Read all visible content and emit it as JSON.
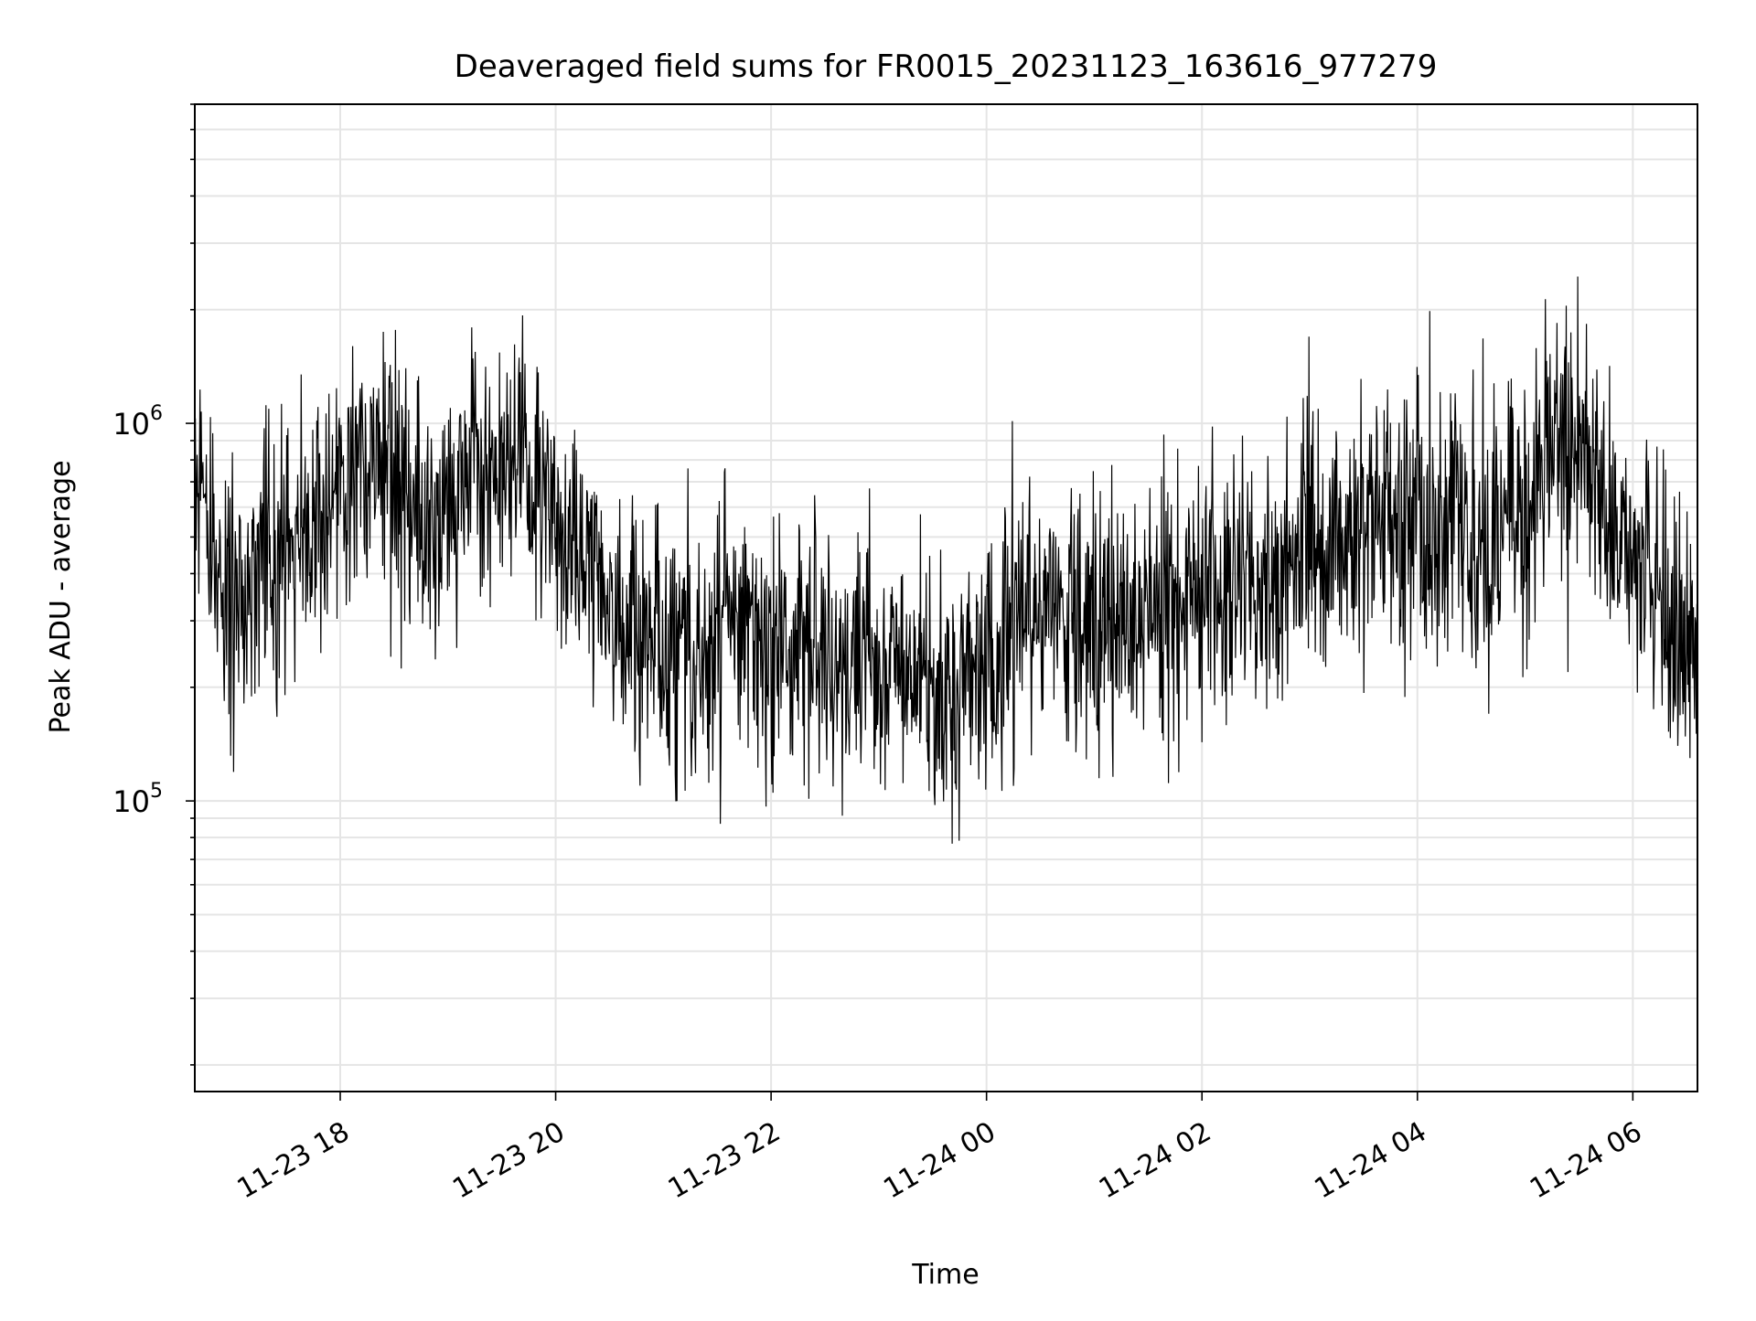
{
  "chart_data": {
    "type": "line",
    "title": "Deaveraged field sums for FR0015_20231123_163616_977279",
    "xlabel": "Time",
    "ylabel": "Peak ADU - average",
    "yscale": "log",
    "ylim": [
      17000,
      7000000
    ],
    "xlim": [
      "2023-11-23 16:39",
      "2023-11-24 06:36"
    ],
    "grid": true,
    "legend": "none",
    "line_color": "#000000",
    "grid_color": "#e5e5e5",
    "x_ticks": [
      {
        "t": "2023-11-23 18:00",
        "label": "11-23 18"
      },
      {
        "t": "2023-11-23 20:00",
        "label": "11-23 20"
      },
      {
        "t": "2023-11-23 22:00",
        "label": "11-23 22"
      },
      {
        "t": "2023-11-24 00:00",
        "label": "11-24 00"
      },
      {
        "t": "2023-11-24 02:00",
        "label": "11-24 02"
      },
      {
        "t": "2023-11-24 04:00",
        "label": "11-24 04"
      },
      {
        "t": "2023-11-24 06:00",
        "label": "11-24 06"
      }
    ],
    "y_ticks": [
      {
        "value": 100000,
        "base": "10",
        "exp": "5"
      },
      {
        "value": 1000000,
        "base": "10",
        "exp": "6"
      }
    ],
    "series": [
      {
        "x": [
          "2023-11-23 16:39",
          "2023-11-23 16:59",
          "2023-11-23 17:19",
          "2023-11-23 17:39",
          "2023-11-23 17:59",
          "2023-11-23 18:19",
          "2023-11-23 18:39",
          "2023-11-23 18:59",
          "2023-11-23 19:19",
          "2023-11-23 19:39",
          "2023-11-23 19:59",
          "2023-11-23 20:19",
          "2023-11-23 20:39",
          "2023-11-23 20:59",
          "2023-11-23 21:19",
          "2023-11-23 21:39",
          "2023-11-23 21:59",
          "2023-11-23 22:19",
          "2023-11-23 22:39",
          "2023-11-23 22:59",
          "2023-11-23 23:19",
          "2023-11-23 23:39",
          "2023-11-23 23:59",
          "2023-11-24 00:19",
          "2023-11-24 00:39",
          "2023-11-24 00:59",
          "2023-11-24 01:19",
          "2023-11-24 01:39",
          "2023-11-24 01:59",
          "2023-11-24 02:19",
          "2023-11-24 02:39",
          "2023-11-24 02:59",
          "2023-11-24 03:19",
          "2023-11-24 03:39",
          "2023-11-24 03:59",
          "2023-11-24 04:19",
          "2023-11-24 04:39",
          "2023-11-24 04:59",
          "2023-11-24 05:19",
          "2023-11-24 05:39",
          "2023-11-24 05:59",
          "2023-11-24 06:19",
          "2023-11-24 06:36"
        ],
        "y": [
          700000,
          300000,
          400000,
          450000,
          700000,
          900000,
          550000,
          600000,
          700000,
          750000,
          600000,
          400000,
          320000,
          260000,
          250000,
          280000,
          280000,
          260000,
          240000,
          230000,
          220000,
          180000,
          250000,
          300000,
          320000,
          280000,
          300000,
          320000,
          350000,
          380000,
          400000,
          450000,
          500000,
          550000,
          500000,
          550000,
          500000,
          600000,
          900000,
          700000,
          500000,
          300000,
          250000
        ]
      }
    ]
  }
}
